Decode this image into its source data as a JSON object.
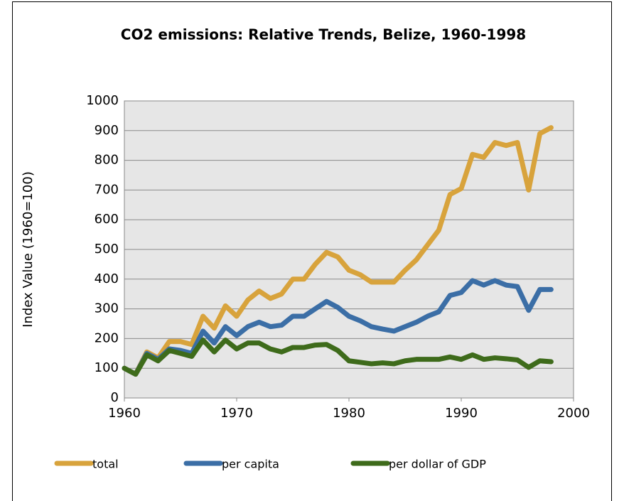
{
  "chart_data": {
    "type": "line",
    "title": "CO2 emissions: Relative Trends, Belize, 1960-1998",
    "y_label": "Index Value (1960=100)",
    "x": [
      1960,
      1961,
      1962,
      1963,
      1964,
      1965,
      1966,
      1967,
      1968,
      1969,
      1970,
      1971,
      1972,
      1973,
      1974,
      1975,
      1976,
      1977,
      1978,
      1979,
      1980,
      1981,
      1982,
      1983,
      1984,
      1985,
      1986,
      1987,
      1988,
      1989,
      1990,
      1991,
      1992,
      1993,
      1994,
      1995,
      1996,
      1997,
      1998
    ],
    "series": [
      {
        "name": "total",
        "color": "#d8a33c",
        "values": [
          100,
          80,
          155,
          135,
          190,
          190,
          180,
          275,
          235,
          310,
          275,
          330,
          360,
          335,
          350,
          400,
          400,
          450,
          490,
          475,
          430,
          415,
          390,
          390,
          390,
          430,
          465,
          515,
          565,
          685,
          705,
          820,
          810,
          860,
          850,
          860,
          700,
          890,
          910
        ]
      },
      {
        "name": "per capita",
        "color": "#3b6ea6",
        "values": [
          100,
          80,
          150,
          130,
          165,
          160,
          150,
          225,
          185,
          240,
          210,
          240,
          255,
          240,
          245,
          275,
          275,
          300,
          325,
          305,
          275,
          260,
          240,
          232,
          225,
          240,
          255,
          275,
          290,
          345,
          355,
          395,
          380,
          395,
          380,
          375,
          295,
          365,
          365
        ]
      },
      {
        "name": "per dollar of GDP",
        "color": "#3e6b1b",
        "values": [
          100,
          80,
          145,
          125,
          160,
          150,
          140,
          195,
          155,
          195,
          165,
          185,
          185,
          165,
          155,
          170,
          170,
          178,
          180,
          160,
          125,
          120,
          115,
          118,
          115,
          125,
          130,
          130,
          130,
          138,
          130,
          145,
          130,
          135,
          132,
          128,
          103,
          125,
          122
        ]
      }
    ],
    "xlim": [
      1960,
      2000
    ],
    "xticks": [
      1960,
      1970,
      1980,
      1990,
      2000
    ],
    "ylim": [
      0,
      1000
    ],
    "yticks": [
      0,
      100,
      200,
      300,
      400,
      500,
      600,
      700,
      800,
      900,
      1000
    ],
    "grid": true,
    "legend": "bottom",
    "plot_background": "#e6e6e6"
  }
}
